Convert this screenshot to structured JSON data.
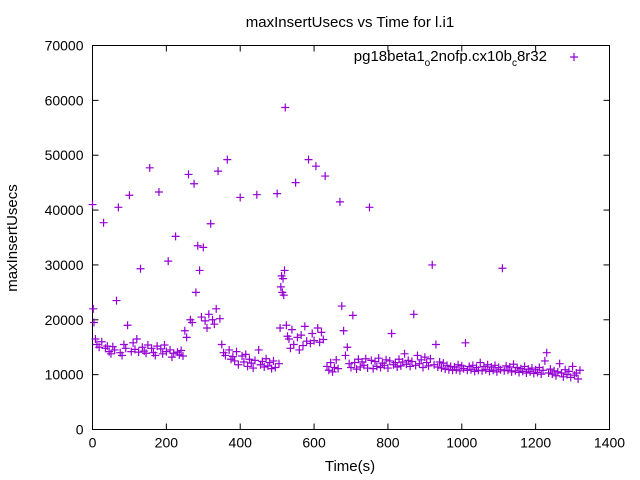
{
  "chart_data": {
    "type": "scatter",
    "title": "maxInsertUsecs vs Time for l.i1",
    "xlabel": "Time(s)",
    "ylabel": "maxInsertUsecs",
    "xlim": [
      0,
      1400
    ],
    "ylim": [
      0,
      70000
    ],
    "x_ticks": [
      0,
      200,
      400,
      600,
      800,
      1000,
      1200,
      1400
    ],
    "y_ticks": [
      0,
      10000,
      20000,
      30000,
      40000,
      50000,
      60000,
      70000
    ],
    "grid": false,
    "legend_position": "top-right",
    "marker": "+",
    "color": "#9400d3",
    "series": [
      {
        "name": "pg18beta1_o2nofp.cx10b_c8r32",
        "legend_parts": [
          "pg18beta1",
          "o",
          "2nofp.cx10b",
          "c",
          "8r32"
        ],
        "points": [
          [
            0,
            41000
          ],
          [
            2,
            22000
          ],
          [
            4,
            19500
          ],
          [
            8,
            16500
          ],
          [
            12,
            15500
          ],
          [
            18,
            15000
          ],
          [
            25,
            16000
          ],
          [
            30,
            37700
          ],
          [
            35,
            14800
          ],
          [
            40,
            15200
          ],
          [
            45,
            14200
          ],
          [
            50,
            13800
          ],
          [
            55,
            15100
          ],
          [
            60,
            14500
          ],
          [
            65,
            23500
          ],
          [
            70,
            40500
          ],
          [
            75,
            14000
          ],
          [
            80,
            13500
          ],
          [
            85,
            15500
          ],
          [
            90,
            14800
          ],
          [
            95,
            19000
          ],
          [
            100,
            42700
          ],
          [
            105,
            14200
          ],
          [
            110,
            15800
          ],
          [
            115,
            14600
          ],
          [
            120,
            16500
          ],
          [
            125,
            14100
          ],
          [
            130,
            29300
          ],
          [
            135,
            15000
          ],
          [
            140,
            14300
          ],
          [
            145,
            13900
          ],
          [
            150,
            15400
          ],
          [
            155,
            47700
          ],
          [
            160,
            14800
          ],
          [
            165,
            14000
          ],
          [
            170,
            13500
          ],
          [
            175,
            15200
          ],
          [
            180,
            43300
          ],
          [
            185,
            14700
          ],
          [
            190,
            13800
          ],
          [
            195,
            15400
          ],
          [
            200,
            14200
          ],
          [
            205,
            30700
          ],
          [
            210,
            14500
          ],
          [
            215,
            13200
          ],
          [
            220,
            13900
          ],
          [
            225,
            35200
          ],
          [
            230,
            14100
          ],
          [
            235,
            13600
          ],
          [
            240,
            14400
          ],
          [
            245,
            13400
          ],
          [
            250,
            18000
          ],
          [
            255,
            16800
          ],
          [
            260,
            46500
          ],
          [
            265,
            20000
          ],
          [
            270,
            19500
          ],
          [
            275,
            44800
          ],
          [
            280,
            25000
          ],
          [
            285,
            33500
          ],
          [
            290,
            29000
          ],
          [
            295,
            20500
          ],
          [
            300,
            33200
          ],
          [
            305,
            19800
          ],
          [
            310,
            18500
          ],
          [
            315,
            21000
          ],
          [
            320,
            37500
          ],
          [
            325,
            20000
          ],
          [
            330,
            19200
          ],
          [
            335,
            22000
          ],
          [
            340,
            47100
          ],
          [
            345,
            20200
          ],
          [
            350,
            15500
          ],
          [
            355,
            14000
          ],
          [
            360,
            13500
          ],
          [
            365,
            49200
          ],
          [
            370,
            14500
          ],
          [
            375,
            12800
          ],
          [
            380,
            13300
          ],
          [
            385,
            12500
          ],
          [
            390,
            14200
          ],
          [
            395,
            11800
          ],
          [
            400,
            42300
          ],
          [
            405,
            13400
          ],
          [
            410,
            12300
          ],
          [
            415,
            13700
          ],
          [
            420,
            11500
          ],
          [
            425,
            12800
          ],
          [
            430,
            12100
          ],
          [
            435,
            11200
          ],
          [
            440,
            12600
          ],
          [
            445,
            42800
          ],
          [
            450,
            14500
          ],
          [
            455,
            11800
          ],
          [
            460,
            12400
          ],
          [
            465,
            11400
          ],
          [
            470,
            12900
          ],
          [
            475,
            11600
          ],
          [
            480,
            12200
          ],
          [
            485,
            11100
          ],
          [
            490,
            12500
          ],
          [
            495,
            11300
          ],
          [
            500,
            43000
          ],
          [
            505,
            12000
          ],
          [
            508,
            18500
          ],
          [
            510,
            26000
          ],
          [
            512,
            28000
          ],
          [
            514,
            25000
          ],
          [
            516,
            27500
          ],
          [
            518,
            24500
          ],
          [
            520,
            29000
          ],
          [
            522,
            58700
          ],
          [
            525,
            19000
          ],
          [
            528,
            17000
          ],
          [
            532,
            16500
          ],
          [
            536,
            14800
          ],
          [
            540,
            18200
          ],
          [
            545,
            15500
          ],
          [
            550,
            45000
          ],
          [
            555,
            16800
          ],
          [
            560,
            14500
          ],
          [
            565,
            17200
          ],
          [
            570,
            15300
          ],
          [
            575,
            18800
          ],
          [
            580,
            16100
          ],
          [
            585,
            49200
          ],
          [
            590,
            15700
          ],
          [
            595,
            17500
          ],
          [
            600,
            16200
          ],
          [
            605,
            48000
          ],
          [
            610,
            18500
          ],
          [
            615,
            15900
          ],
          [
            620,
            17700
          ],
          [
            625,
            16400
          ],
          [
            630,
            46200
          ],
          [
            635,
            11500
          ],
          [
            640,
            10800
          ],
          [
            645,
            12200
          ],
          [
            650,
            10500
          ],
          [
            655,
            11300
          ],
          [
            660,
            12700
          ],
          [
            665,
            11100
          ],
          [
            670,
            41500
          ],
          [
            675,
            22500
          ],
          [
            680,
            18000
          ],
          [
            685,
            13500
          ],
          [
            690,
            15000
          ],
          [
            695,
            12000
          ],
          [
            700,
            11300
          ],
          [
            705,
            20800
          ],
          [
            710,
            12200
          ],
          [
            715,
            11000
          ],
          [
            720,
            12800
          ],
          [
            725,
            11400
          ],
          [
            730,
            12300
          ],
          [
            735,
            11700
          ],
          [
            740,
            12900
          ],
          [
            745,
            11200
          ],
          [
            750,
            40500
          ],
          [
            755,
            12600
          ],
          [
            760,
            11100
          ],
          [
            765,
            12400
          ],
          [
            770,
            11500
          ],
          [
            775,
            13000
          ],
          [
            780,
            11300
          ],
          [
            785,
            12100
          ],
          [
            790,
            11700
          ],
          [
            795,
            12700
          ],
          [
            800,
            11200
          ],
          [
            805,
            12500
          ],
          [
            810,
            17500
          ],
          [
            815,
            11800
          ],
          [
            820,
            12200
          ],
          [
            825,
            11400
          ],
          [
            830,
            12800
          ],
          [
            835,
            11600
          ],
          [
            840,
            12300
          ],
          [
            845,
            13800
          ],
          [
            850,
            11900
          ],
          [
            855,
            12600
          ],
          [
            860,
            11500
          ],
          [
            865,
            12400
          ],
          [
            870,
            21000
          ],
          [
            875,
            11700
          ],
          [
            880,
            13500
          ],
          [
            885,
            12000
          ],
          [
            890,
            12700
          ],
          [
            895,
            11300
          ],
          [
            900,
            13200
          ],
          [
            905,
            12200
          ],
          [
            910,
            11600
          ],
          [
            915,
            12900
          ],
          [
            920,
            30000
          ],
          [
            925,
            11800
          ],
          [
            930,
            15500
          ],
          [
            935,
            11400
          ],
          [
            940,
            12300
          ],
          [
            945,
            11200
          ],
          [
            950,
            12100
          ],
          [
            955,
            11000
          ],
          [
            960,
            11700
          ],
          [
            965,
            10900
          ],
          [
            970,
            11500
          ],
          [
            975,
            10800
          ],
          [
            980,
            11400
          ],
          [
            985,
            10900
          ],
          [
            990,
            11800
          ],
          [
            995,
            10700
          ],
          [
            1000,
            11600
          ],
          [
            1005,
            11100
          ],
          [
            1010,
            15800
          ],
          [
            1015,
            10800
          ],
          [
            1020,
            11500
          ],
          [
            1025,
            10900
          ],
          [
            1030,
            11700
          ],
          [
            1035,
            10600
          ],
          [
            1040,
            11300
          ],
          [
            1045,
            10800
          ],
          [
            1050,
            12200
          ],
          [
            1055,
            10700
          ],
          [
            1060,
            11500
          ],
          [
            1065,
            10900
          ],
          [
            1070,
            11800
          ],
          [
            1075,
            10600
          ],
          [
            1080,
            11400
          ],
          [
            1085,
            10800
          ],
          [
            1090,
            11700
          ],
          [
            1095,
            10500
          ],
          [
            1100,
            11300
          ],
          [
            1105,
            10900
          ],
          [
            1110,
            29400
          ],
          [
            1115,
            10700
          ],
          [
            1120,
            11600
          ],
          [
            1125,
            10800
          ],
          [
            1130,
            11400
          ],
          [
            1135,
            10500
          ],
          [
            1140,
            11900
          ],
          [
            1145,
            10700
          ],
          [
            1150,
            11300
          ],
          [
            1155,
            10400
          ],
          [
            1160,
            11100
          ],
          [
            1165,
            10600
          ],
          [
            1170,
            11500
          ],
          [
            1175,
            10300
          ],
          [
            1180,
            11000
          ],
          [
            1185,
            10500
          ],
          [
            1190,
            11200
          ],
          [
            1195,
            10200
          ],
          [
            1200,
            10900
          ],
          [
            1205,
            10400
          ],
          [
            1210,
            11300
          ],
          [
            1215,
            10100
          ],
          [
            1220,
            10800
          ],
          [
            1225,
            12500
          ],
          [
            1230,
            14000
          ],
          [
            1235,
            10300
          ],
          [
            1240,
            11000
          ],
          [
            1245,
            10100
          ],
          [
            1250,
            10700
          ],
          [
            1255,
            9800
          ],
          [
            1260,
            10500
          ],
          [
            1265,
            12000
          ],
          [
            1270,
            10300
          ],
          [
            1275,
            9600
          ],
          [
            1280,
            10900
          ],
          [
            1285,
            10000
          ],
          [
            1290,
            10600
          ],
          [
            1295,
            9500
          ],
          [
            1300,
            11500
          ],
          [
            1305,
            9900
          ],
          [
            1310,
            10300
          ],
          [
            1315,
            9200
          ],
          [
            1320,
            10800
          ]
        ]
      }
    ]
  }
}
